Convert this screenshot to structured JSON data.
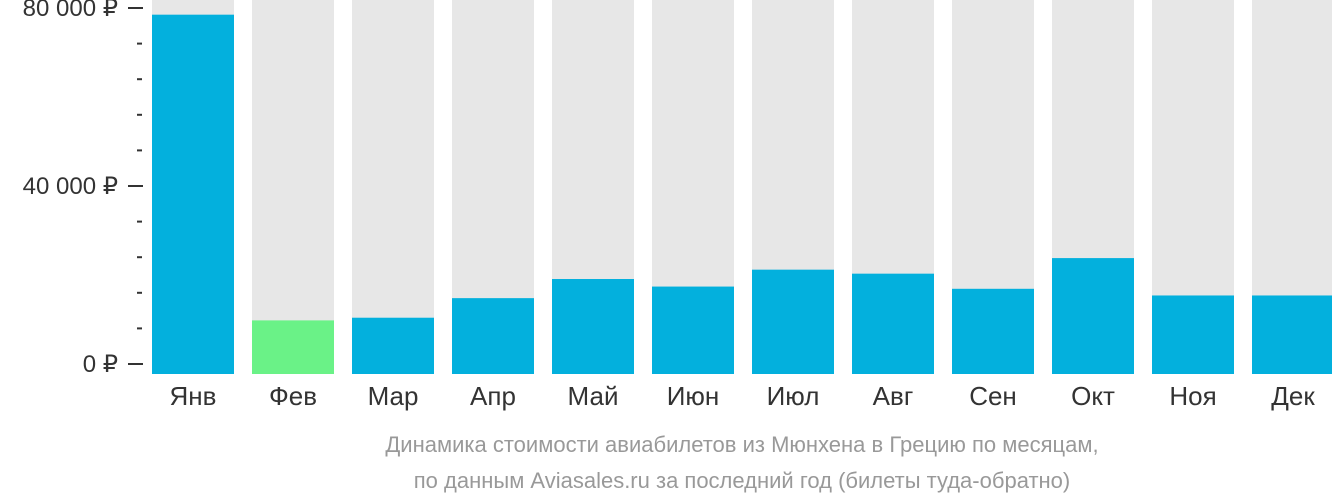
{
  "chart_data": {
    "type": "bar",
    "categories": [
      "Янв",
      "Фев",
      "Мар",
      "Апр",
      "Май",
      "Июн",
      "Июл",
      "Авг",
      "Сен",
      "Окт",
      "Ноя",
      "Дек"
    ],
    "values": [
      78500,
      9800,
      10400,
      14800,
      19100,
      17400,
      21200,
      20300,
      16900,
      23800,
      15400,
      15400
    ],
    "highlight_index": 1,
    "ylim": [
      0,
      80000
    ],
    "yticks": [
      0,
      40000,
      80000
    ],
    "ytick_labels": [
      "0 ₽",
      "40 000 ₽",
      "80 000 ₽"
    ],
    "minor_ytick_step": 8000,
    "title": "",
    "caption_lines": [
      "Динамика стоимости авиабилетов из Мюнхена в Грецию по месяцам,",
      "по данным Aviasales.ru за последний год (билеты туда-обратно)"
    ],
    "colors": {
      "bar": "#03b0dd",
      "highlight_bar": "#6af287",
      "background_bar": "#e7e7e7",
      "axis": "#333333",
      "caption": "#999999"
    }
  }
}
